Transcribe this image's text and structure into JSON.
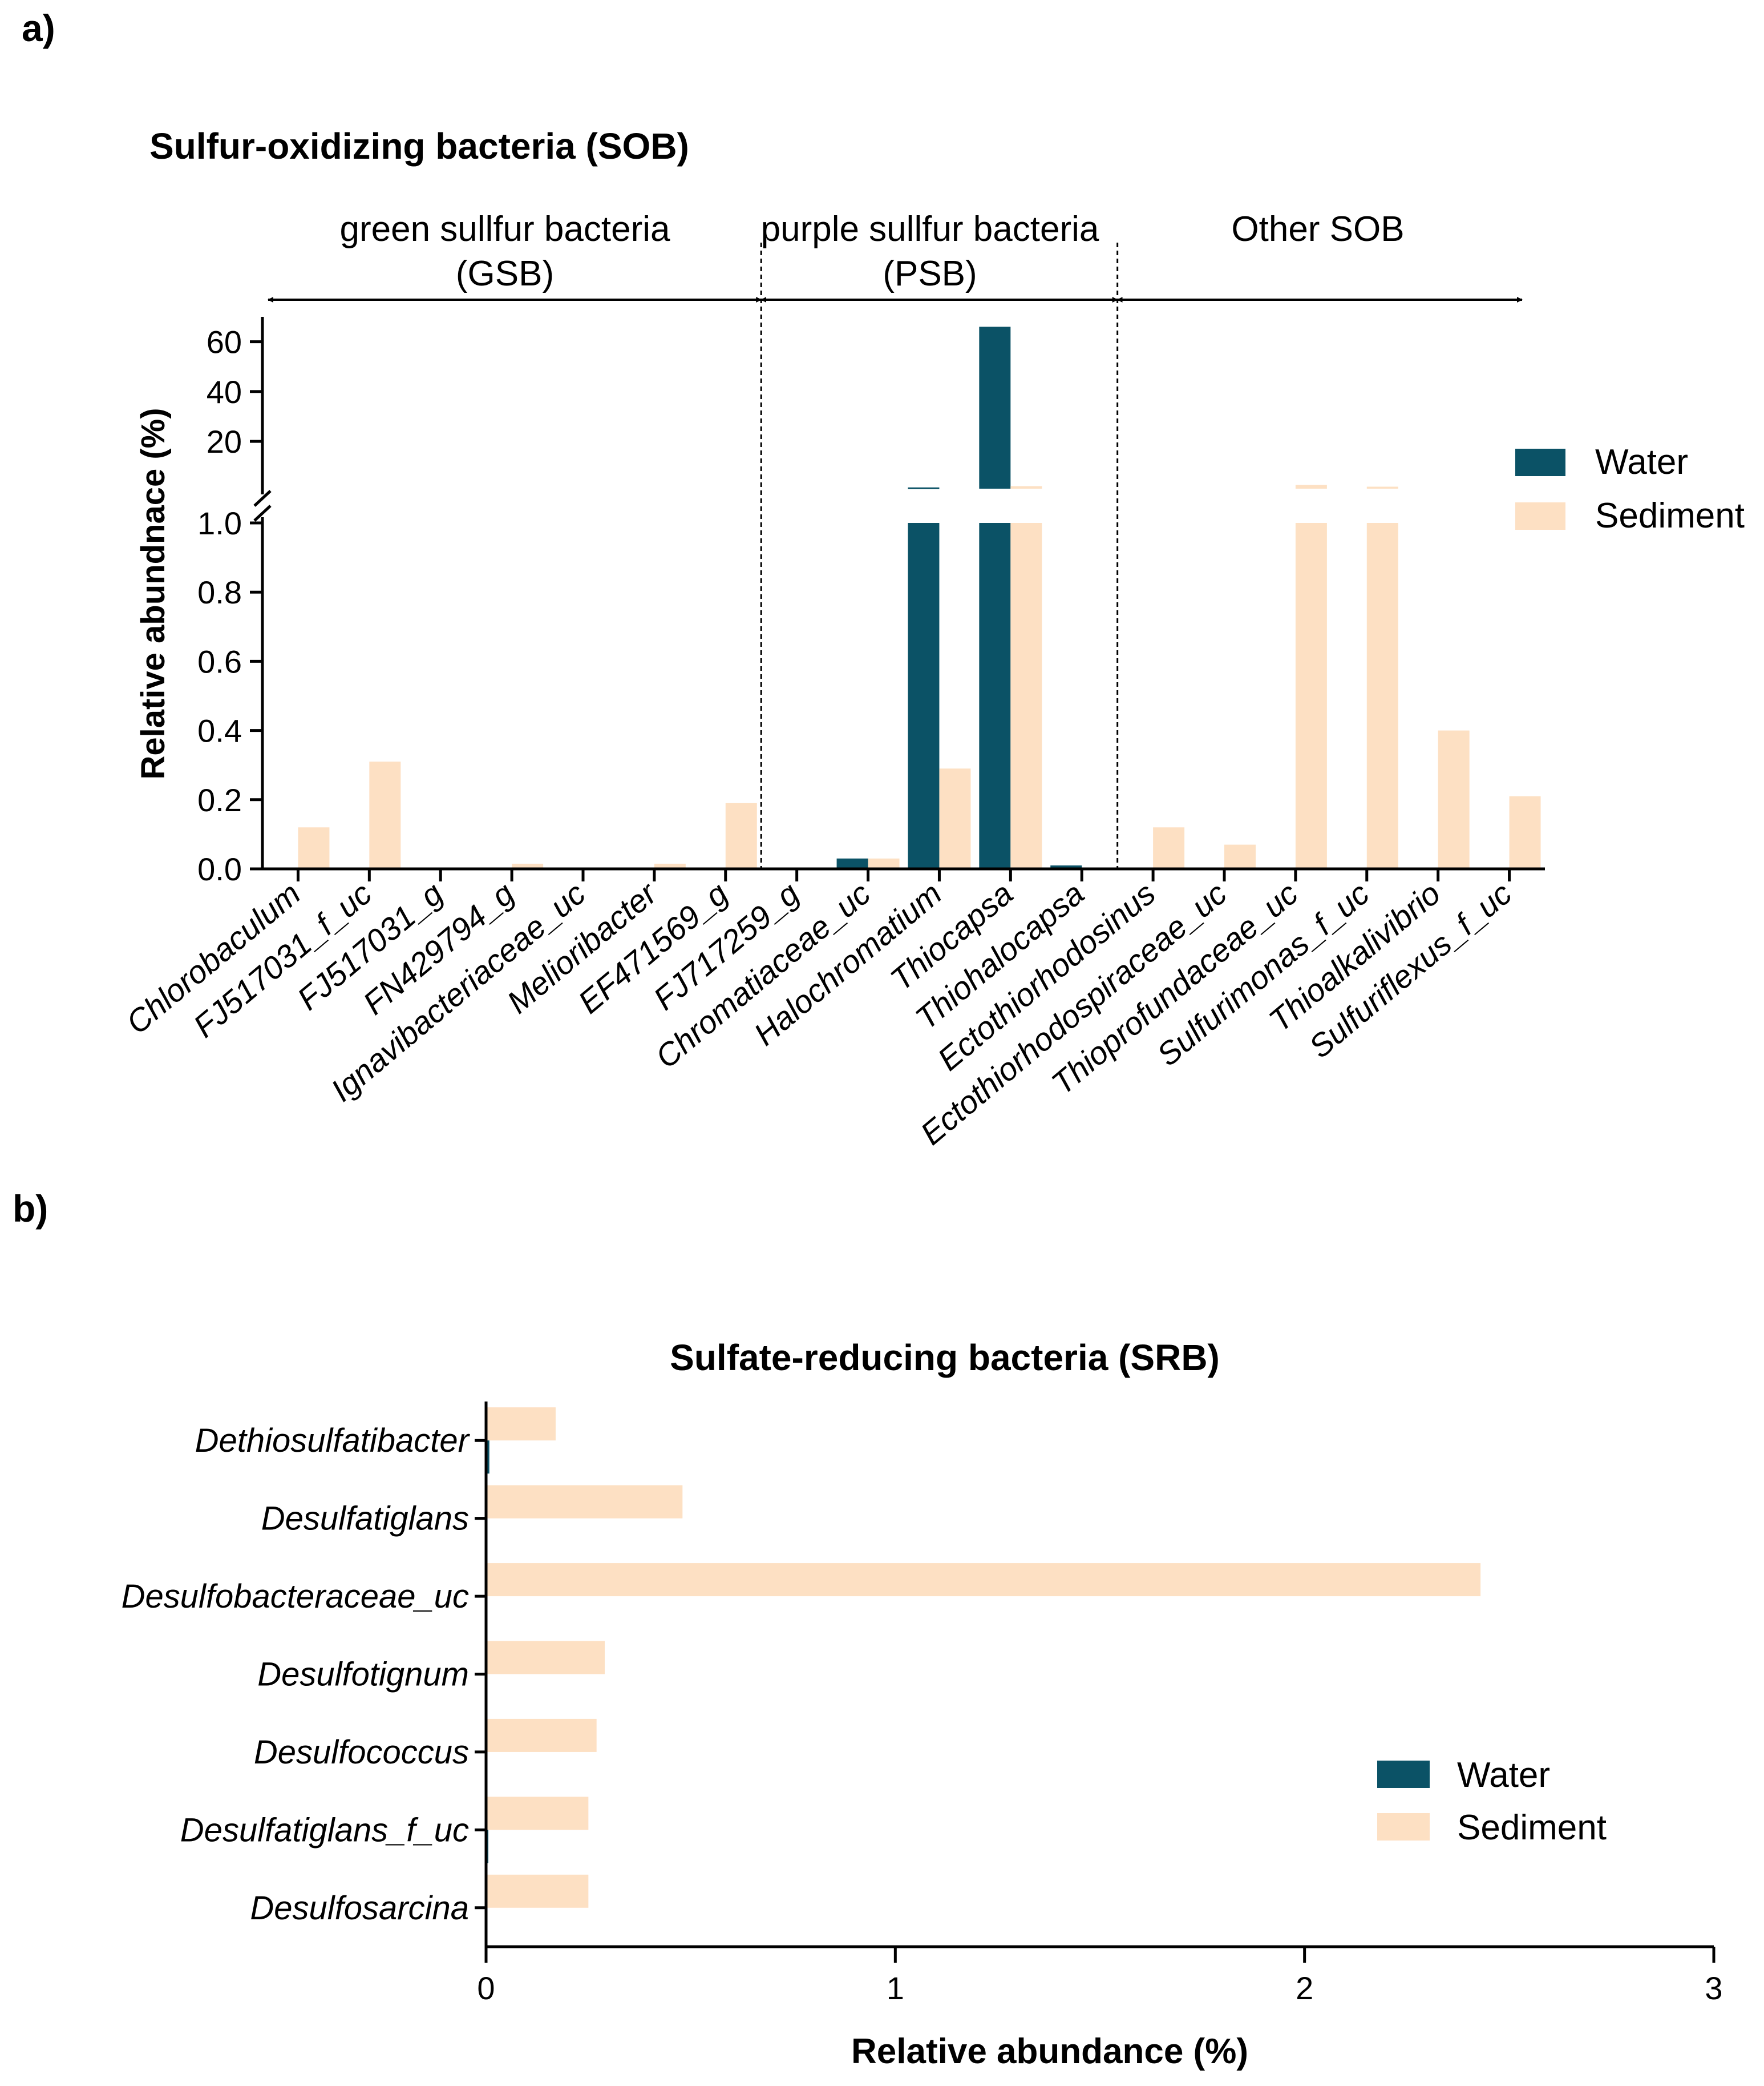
{
  "colors": {
    "water": "#0b5266",
    "sediment": "#fde0c3",
    "axis": "#000000"
  },
  "chart_data": [
    {
      "panel_label": "a)",
      "type": "bar",
      "orientation": "vertical",
      "title": "Sulfur-oxidizing bacteria (SOB)",
      "ylabel": "Relative abundnace (%)",
      "xlabel": "",
      "y_axis": {
        "broken": true,
        "lower_range": [
          0,
          1.0
        ],
        "lower_ticks": [
          "0.0",
          "0.2",
          "0.4",
          "0.6",
          "0.8",
          "1.0"
        ],
        "upper_range": [
          1.0,
          70
        ],
        "upper_ticks": [
          "20",
          "40",
          "60"
        ]
      },
      "groups": [
        {
          "label_line1": "green sullfur bacteria",
          "label_line2": "(GSB)",
          "first": 0,
          "last": 6
        },
        {
          "label_line1": "purple sullfur bacteria",
          "label_line2": "(PSB)",
          "first": 7,
          "last": 11
        },
        {
          "label_line1": "Other SOB",
          "label_line2": "",
          "first": 12,
          "last": 17
        }
      ],
      "categories": [
        "Chlorobaculum",
        "FJ517031_f_uc",
        "FJ517031_g",
        "FN429794_g",
        "Ignavibacteriaceae_uc",
        "Melioribacter",
        "EF471569_g",
        "FJ717259_g",
        "Chromatiaceae_uc",
        "Halochromatium",
        "Thiocapsa",
        "Thiohalocapsa",
        "Ectothiorhodosinus",
        "Ectothiorhodospiraceae_uc",
        "Thioprofundaceae_uc",
        "Sulfurimonas_f_uc",
        "Thioalkalivibrio",
        "Sulfuriflexus_f_uc"
      ],
      "series": [
        {
          "name": "Water",
          "values": [
            0,
            0,
            0,
            0,
            0,
            0,
            0,
            0,
            0.03,
            1.5,
            66,
            0.01,
            0,
            0,
            0,
            0,
            0,
            0
          ]
        },
        {
          "name": "Sediment",
          "values": [
            0.12,
            0.31,
            0,
            0.015,
            0,
            0.015,
            0.19,
            0,
            0.03,
            0.29,
            2.0,
            0,
            0.12,
            0.07,
            2.5,
            1.8,
            0.4,
            0.21
          ]
        }
      ],
      "legend": {
        "position": "right",
        "entries": [
          "Water",
          "Sediment"
        ]
      }
    },
    {
      "panel_label": "b)",
      "type": "bar",
      "orientation": "horizontal",
      "title": "Sulfate-reducing bacteria (SRB)",
      "xlabel": "Relative abundance (%)",
      "ylabel": "",
      "xlim": [
        0,
        3
      ],
      "xticks": [
        "0",
        "1",
        "2",
        "3"
      ],
      "categories": [
        "Dethiosulfatibacter",
        "Desulfatiglans",
        "Desulfobacteraceae_uc",
        "Desulfotignum",
        "Desulfococcus",
        "Desulfatiglans_f_uc",
        "Desulfosarcina"
      ],
      "series": [
        {
          "name": "Water",
          "values": [
            0.008,
            0,
            0,
            0,
            0,
            0.004,
            0
          ]
        },
        {
          "name": "Sediment",
          "values": [
            0.17,
            0.48,
            2.43,
            0.29,
            0.27,
            0.25,
            0.25
          ]
        }
      ],
      "legend": {
        "position": "bottom-right",
        "entries": [
          "Water",
          "Sediment"
        ]
      }
    }
  ]
}
